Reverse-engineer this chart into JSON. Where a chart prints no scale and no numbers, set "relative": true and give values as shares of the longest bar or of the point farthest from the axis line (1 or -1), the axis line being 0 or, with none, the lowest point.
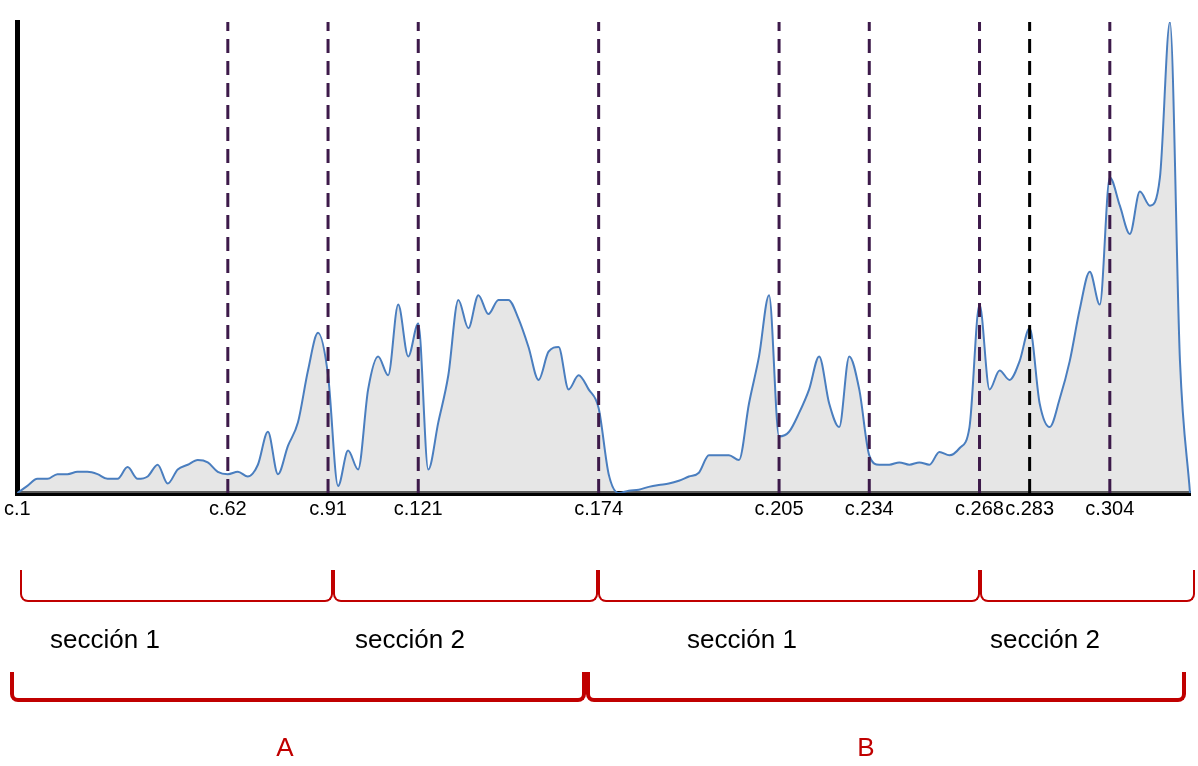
{
  "chart_data": {
    "type": "area",
    "relative": true,
    "marker": "none",
    "grid": false,
    "legend": false,
    "categories": [
      "c.1",
      null,
      null,
      null,
      null,
      null,
      null,
      null,
      null,
      null,
      null,
      null,
      null,
      null,
      null,
      null,
      null,
      null,
      null,
      null,
      null,
      "c.62",
      null,
      null,
      null,
      null,
      null,
      null,
      null,
      null,
      null,
      "c.91",
      null,
      null,
      null,
      null,
      null,
      null,
      null,
      null,
      "c.121",
      null,
      null,
      null,
      null,
      null,
      null,
      null,
      null,
      null,
      null,
      null,
      null,
      null,
      null,
      null,
      null,
      null,
      "c.174",
      null,
      null,
      null,
      null,
      null,
      null,
      null,
      null,
      null,
      null,
      null,
      null,
      null,
      null,
      null,
      null,
      null,
      "c.205",
      null,
      null,
      null,
      null,
      null,
      null,
      null,
      null,
      "c.234",
      null,
      null,
      null,
      null,
      null,
      null,
      null,
      null,
      null,
      null,
      "c.268",
      null,
      null,
      null,
      null,
      "c.283",
      null,
      null,
      null,
      null,
      null,
      null,
      null,
      "c.304",
      null,
      null,
      null,
      null,
      null,
      null,
      null,
      null
    ],
    "series": [
      {
        "color": "#4a7ebf",
        "values": [
          0,
          0.015,
          0.03,
          0.03,
          0.04,
          0.04,
          0.045,
          0.045,
          0.04,
          0.03,
          0.03,
          0.055,
          0.03,
          0.035,
          0.06,
          0.02,
          0.05,
          0.06,
          0.07,
          0.065,
          0.045,
          0.04,
          0.045,
          0.035,
          0.06,
          0.13,
          0.04,
          0.1,
          0.15,
          0.26,
          0.34,
          0.25,
          0.015,
          0.09,
          0.05,
          0.22,
          0.29,
          0.25,
          0.4,
          0.29,
          0.36,
          0.05,
          0.15,
          0.25,
          0.41,
          0.35,
          0.42,
          0.38,
          0.41,
          0.41,
          0.37,
          0.31,
          0.24,
          0.3,
          0.31,
          0.22,
          0.25,
          0.22,
          0.18,
          0.04,
          0,
          0.005,
          0.007,
          0.013,
          0.017,
          0.02,
          0.026,
          0.035,
          0.043,
          0.08,
          0.08,
          0.08,
          0.07,
          0.19,
          0.29,
          0.42,
          0.12,
          0.13,
          0.17,
          0.22,
          0.29,
          0.19,
          0.14,
          0.29,
          0.22,
          0.08,
          0.06,
          0.06,
          0.065,
          0.06,
          0.065,
          0.06,
          0.087,
          0.08,
          0.095,
          0.14,
          0.4,
          0.22,
          0.26,
          0.24,
          0.28,
          0.35,
          0.19,
          0.14,
          0.2,
          0.28,
          0.39,
          0.47,
          0.4,
          0.67,
          0.61,
          0.55,
          0.64,
          0.61,
          0.67,
          1,
          0.28,
          0
        ]
      }
    ],
    "ref_lines": [
      {
        "axis": "x",
        "value": "c.62",
        "color": "#3d1a4a",
        "line_style": "dashed"
      },
      {
        "axis": "x",
        "value": "c.91",
        "color": "#3d1a4a",
        "line_style": "dashed"
      },
      {
        "axis": "x",
        "value": "c.121",
        "color": "#3d1a4a",
        "line_style": "dashed"
      },
      {
        "axis": "x",
        "value": "c.174",
        "color": "#3d1a4a",
        "line_style": "dashed"
      },
      {
        "axis": "x",
        "value": "c.205",
        "color": "#3d1a4a",
        "line_style": "dashed"
      },
      {
        "axis": "x",
        "value": "c.234",
        "color": "#3d1a4a",
        "line_style": "dashed"
      },
      {
        "axis": "x",
        "value": "c.268",
        "color": "#3d1a4a",
        "line_style": "dashed"
      },
      {
        "axis": "x",
        "value": "c.283",
        "color": "#000000",
        "line_style": "dashed"
      },
      {
        "axis": "x",
        "value": "c.304",
        "color": "#3d1a4a",
        "line_style": "dashed"
      }
    ],
    "annotations": [
      "sección 1",
      "sección 2",
      "sección 1",
      "sección 2",
      "A",
      "B"
    ]
  }
}
